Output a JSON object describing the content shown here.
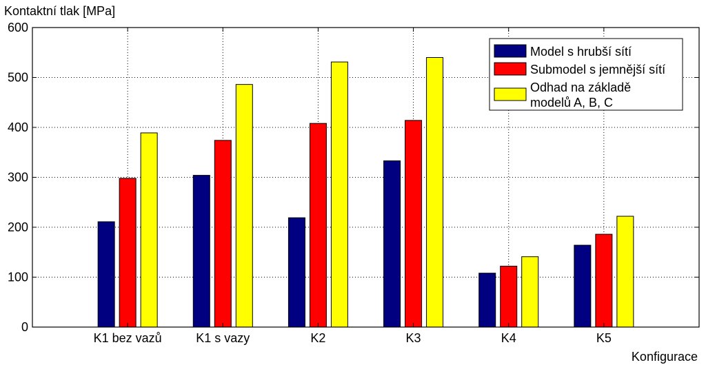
{
  "chart_data": {
    "type": "bar",
    "ylabel": "Kontaktní tlak [MPa]",
    "xlabel": "Konfigurace",
    "categories": [
      "K1 bez vazů",
      "K1 s vazy",
      "K2",
      "K3",
      "K4",
      "K5"
    ],
    "ylim": [
      0,
      600
    ],
    "yticks": [
      0,
      100,
      200,
      300,
      400,
      500,
      600
    ],
    "grid": true,
    "legend_position": "top-right",
    "series": [
      {
        "name": "Model s hrubší sítí",
        "color": "#000080",
        "values": [
          211,
          304,
          219,
          333,
          108,
          164
        ]
      },
      {
        "name": "Submodel s jemnější sítí",
        "color": "#ff0000",
        "values": [
          298,
          374,
          408,
          414,
          122,
          186
        ]
      },
      {
        "name": "Odhad na základě modelů A, B, C",
        "name_lines": [
          "Odhad na základě",
          "modelů A, B, C"
        ],
        "color": "#ffff00",
        "values": [
          389,
          486,
          531,
          540,
          141,
          222
        ]
      }
    ]
  }
}
